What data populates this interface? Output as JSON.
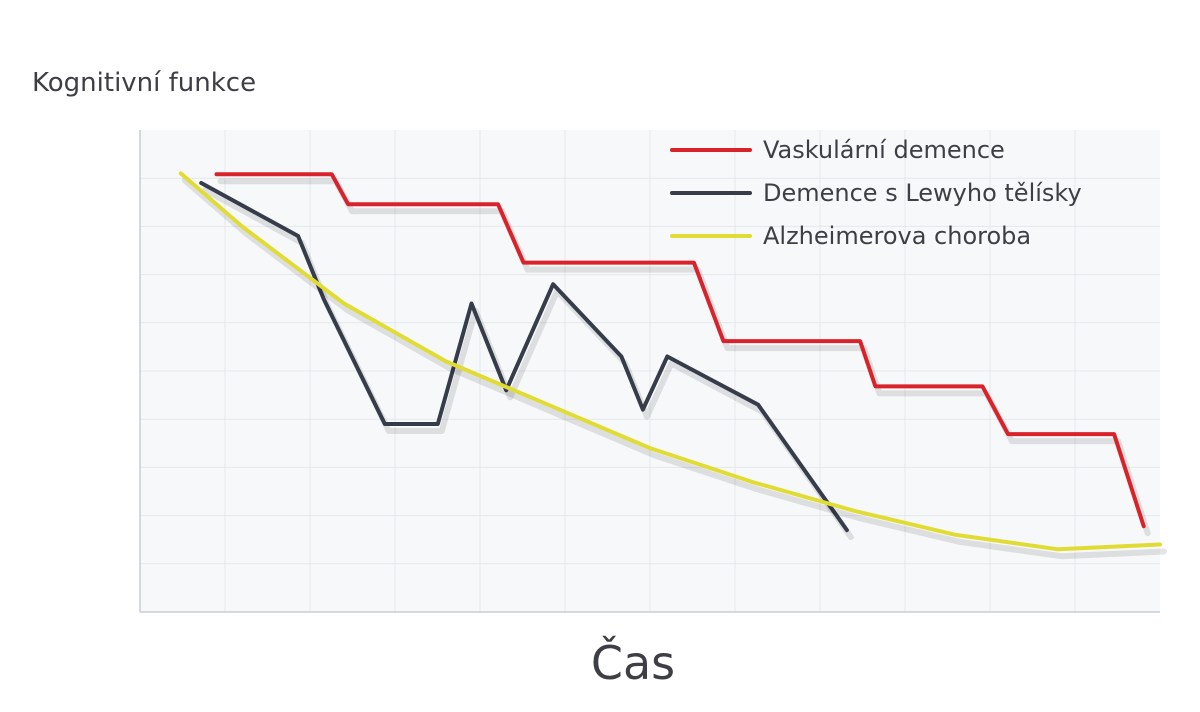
{
  "chart_data": {
    "type": "line",
    "title": "",
    "xlabel": "Čas",
    "ylabel": "Kognitivní funkce",
    "xlim": [
      0,
      100
    ],
    "ylim": [
      0,
      100
    ],
    "grid": true,
    "legend_position": "top-right",
    "series": [
      {
        "name": "Vaskulární demence",
        "color": "#d9232a",
        "x": [
          7,
          19,
          20.5,
          35,
          37.5,
          54,
          57,
          71,
          85,
          86,
          82,
          97,
          98
        ],
        "y": [
          90,
          90,
          84,
          84,
          72,
          72,
          56,
          56,
          46,
          46,
          45,
          36,
          18
        ],
        "x_clean": [
          7.5,
          18.8,
          20.4,
          35.1,
          37.6,
          54.3,
          57.2,
          70.6,
          72.1,
          82.6,
          85.1,
          95.5,
          98.4
        ],
        "y_clean": [
          90.8,
          90.8,
          84.6,
          84.6,
          72.5,
          72.5,
          56.2,
          56.2,
          46.8,
          46.8,
          36.9,
          36.9,
          17.8
        ]
      },
      {
        "name": "Demence s Lewyho tělísky",
        "color": "#363c49",
        "x": [
          6,
          15.5,
          18,
          24,
          29.2,
          32.5,
          35.9,
          40.5,
          47.2,
          49.3,
          51.7,
          60.6,
          69.3
        ],
        "y": [
          89,
          78,
          65,
          39,
          39,
          64,
          46,
          68,
          53,
          42,
          53,
          43,
          17
        ]
      },
      {
        "name": "Alzheimerova choroba",
        "color": "#e1dc34",
        "x": [
          4,
          10,
          20,
          30,
          40,
          50,
          60,
          70,
          80,
          90,
          100
        ],
        "y": [
          91,
          80,
          64,
          52,
          43,
          34,
          27,
          21,
          16,
          13,
          14
        ]
      }
    ]
  }
}
